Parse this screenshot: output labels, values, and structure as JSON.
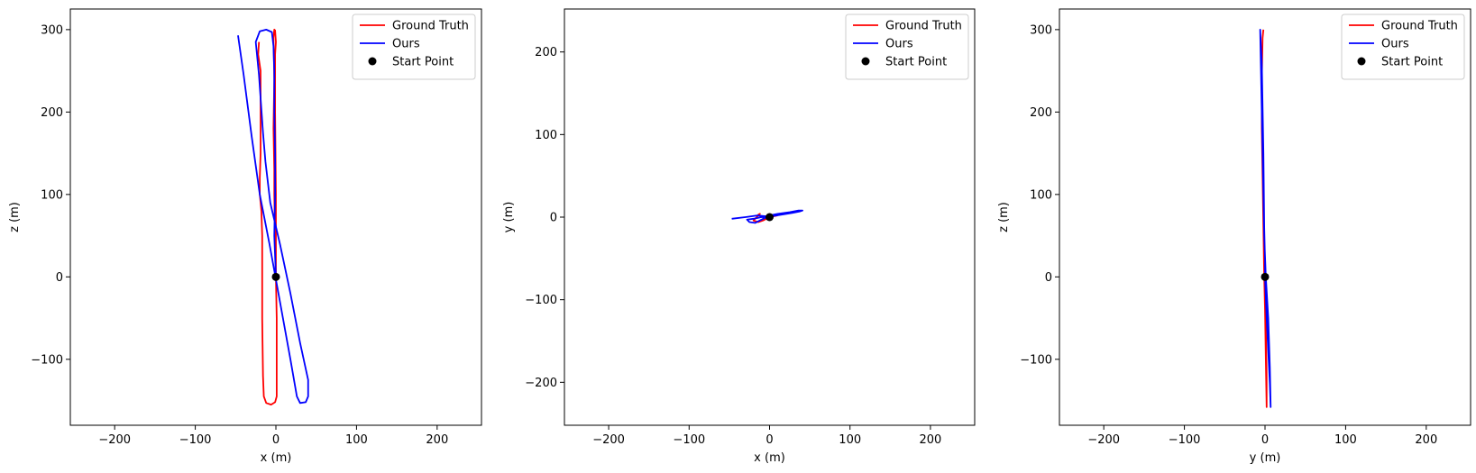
{
  "colors": {
    "ground_truth": "#ff0000",
    "ours": "#0000ff",
    "start": "#000000"
  },
  "chart_data": [
    {
      "type": "line",
      "xlabel": "x (m)",
      "ylabel": "z (m)",
      "xlim": [
        -255,
        255
      ],
      "ylim": [
        -180,
        325
      ],
      "xticks": [
        -200,
        -100,
        0,
        100,
        200
      ],
      "yticks": [
        -100,
        0,
        100,
        200,
        300
      ],
      "grid": false,
      "legend_position": "top-right",
      "series": [
        {
          "name": "Ground Truth",
          "color": "#ff0000",
          "points": [
            [
              0,
              0
            ],
            [
              0,
              100
            ],
            [
              -1,
              200
            ],
            [
              -1,
              240
            ],
            [
              -1,
              270
            ],
            [
              0,
              285
            ],
            [
              -1,
              299
            ],
            [
              -2,
              300
            ],
            [
              -3,
              290
            ],
            [
              -2,
              240
            ],
            [
              -3,
              180
            ],
            [
              -2,
              130
            ],
            [
              -2,
              100
            ],
            [
              -1,
              50
            ],
            [
              0,
              0
            ],
            [
              1,
              -50
            ],
            [
              1,
              -100
            ],
            [
              1,
              -130
            ],
            [
              1,
              -145
            ],
            [
              -1,
              -152
            ],
            [
              -6,
              -155
            ],
            [
              -12,
              -153
            ],
            [
              -15,
              -145
            ],
            [
              -16,
              -120
            ],
            [
              -17,
              -50
            ],
            [
              -17,
              0
            ],
            [
              -17,
              50
            ],
            [
              -18,
              80
            ],
            [
              -20,
              100
            ],
            [
              -20,
              120
            ],
            [
              -19,
              150
            ],
            [
              -19,
              200
            ],
            [
              -19,
              250
            ],
            [
              -22,
              270
            ],
            [
              -21,
              285
            ]
          ]
        },
        {
          "name": "Ours",
          "color": "#0000ff",
          "points": [
            [
              0,
              0
            ],
            [
              -2,
              50
            ],
            [
              -1,
              100
            ],
            [
              -1,
              150
            ],
            [
              -2,
              200
            ],
            [
              -2,
              250
            ],
            [
              -3,
              280
            ],
            [
              -5,
              297
            ],
            [
              -12,
              300
            ],
            [
              -20,
              298
            ],
            [
              -25,
              285
            ],
            [
              -21,
              245
            ],
            [
              -16,
              175
            ],
            [
              -13,
              140
            ],
            [
              -7,
              90
            ],
            [
              5,
              40
            ],
            [
              18,
              -20
            ],
            [
              30,
              -80
            ],
            [
              40,
              -125
            ],
            [
              40,
              -145
            ],
            [
              37,
              -152
            ],
            [
              30,
              -153
            ],
            [
              26,
              -145
            ],
            [
              18,
              -100
            ],
            [
              5,
              -30
            ],
            [
              -8,
              40
            ],
            [
              -20,
              100
            ],
            [
              -30,
              170
            ],
            [
              -40,
              245
            ],
            [
              -47,
              293
            ]
          ]
        },
        {
          "name": "Start Point",
          "type": "scatter",
          "color": "#000000",
          "points": [
            [
              0,
              0
            ]
          ]
        }
      ]
    },
    {
      "type": "line",
      "xlabel": "x (m)",
      "ylabel": "y (m)",
      "xlim": [
        -255,
        255
      ],
      "ylim": [
        -252,
        252
      ],
      "xticks": [
        -200,
        -100,
        0,
        100,
        200
      ],
      "yticks": [
        -200,
        -100,
        0,
        100,
        200
      ],
      "grid": false,
      "legend_position": "top-right",
      "series": [
        {
          "name": "Ground Truth",
          "color": "#ff0000",
          "points": [
            [
              0,
              0
            ],
            [
              -8,
              0
            ],
            [
              -14,
              3
            ],
            [
              -12,
              4
            ],
            [
              -20,
              -4
            ],
            [
              -14,
              -6
            ],
            [
              -8,
              -4
            ],
            [
              0,
              0
            ],
            [
              10,
              2
            ]
          ]
        },
        {
          "name": "Ours",
          "color": "#0000ff",
          "points": [
            [
              -47,
              -2
            ],
            [
              -30,
              0
            ],
            [
              -15,
              2
            ],
            [
              -5,
              1
            ],
            [
              0,
              2
            ],
            [
              10,
              4
            ],
            [
              25,
              6
            ],
            [
              36,
              8
            ],
            [
              41,
              8
            ],
            [
              38,
              7
            ],
            [
              28,
              5
            ],
            [
              15,
              3
            ],
            [
              2,
              1
            ],
            [
              -6,
              -1
            ],
            [
              -12,
              -4
            ],
            [
              -18,
              -7
            ],
            [
              -25,
              -6
            ],
            [
              -28,
              -3
            ],
            [
              -20,
              -2
            ],
            [
              -10,
              0
            ],
            [
              0,
              0
            ]
          ]
        },
        {
          "name": "Start Point",
          "type": "scatter",
          "color": "#000000",
          "points": [
            [
              0,
              0
            ]
          ]
        }
      ]
    },
    {
      "type": "line",
      "xlabel": "y (m)",
      "ylabel": "z (m)",
      "xlim": [
        -255,
        255
      ],
      "ylim": [
        -180,
        325
      ],
      "xticks": [
        -200,
        -100,
        0,
        100,
        200
      ],
      "yticks": [
        -100,
        0,
        100,
        200,
        300
      ],
      "grid": false,
      "legend_position": "top-right",
      "series": [
        {
          "name": "Ground Truth",
          "color": "#ff0000",
          "points": [
            [
              0,
              0
            ],
            [
              1,
              -60
            ],
            [
              2,
              -120
            ],
            [
              2,
              -158
            ],
            [
              1,
              -100
            ],
            [
              0,
              -40
            ],
            [
              -1,
              0
            ],
            [
              -2,
              60
            ],
            [
              -3,
              120
            ],
            [
              -4,
              180
            ],
            [
              -4,
              240
            ],
            [
              -3,
              290
            ],
            [
              -2,
              300
            ]
          ]
        },
        {
          "name": "Ours",
          "color": "#0000ff",
          "points": [
            [
              0,
              0
            ],
            [
              2,
              -50
            ],
            [
              4,
              -90
            ],
            [
              6,
              -130
            ],
            [
              7,
              -158
            ],
            [
              6,
              -110
            ],
            [
              4,
              -50
            ],
            [
              1,
              0
            ],
            [
              -1,
              50
            ],
            [
              -2,
              100
            ],
            [
              -3,
              150
            ],
            [
              -4,
              200
            ],
            [
              -5,
              250
            ],
            [
              -6,
              300
            ],
            [
              -4,
              260
            ],
            [
              -2,
              150
            ],
            [
              -1,
              60
            ],
            [
              0,
              20
            ],
            [
              0,
              0
            ]
          ]
        },
        {
          "name": "Start Point",
          "type": "scatter",
          "color": "#000000",
          "points": [
            [
              0,
              0
            ]
          ]
        }
      ]
    }
  ]
}
